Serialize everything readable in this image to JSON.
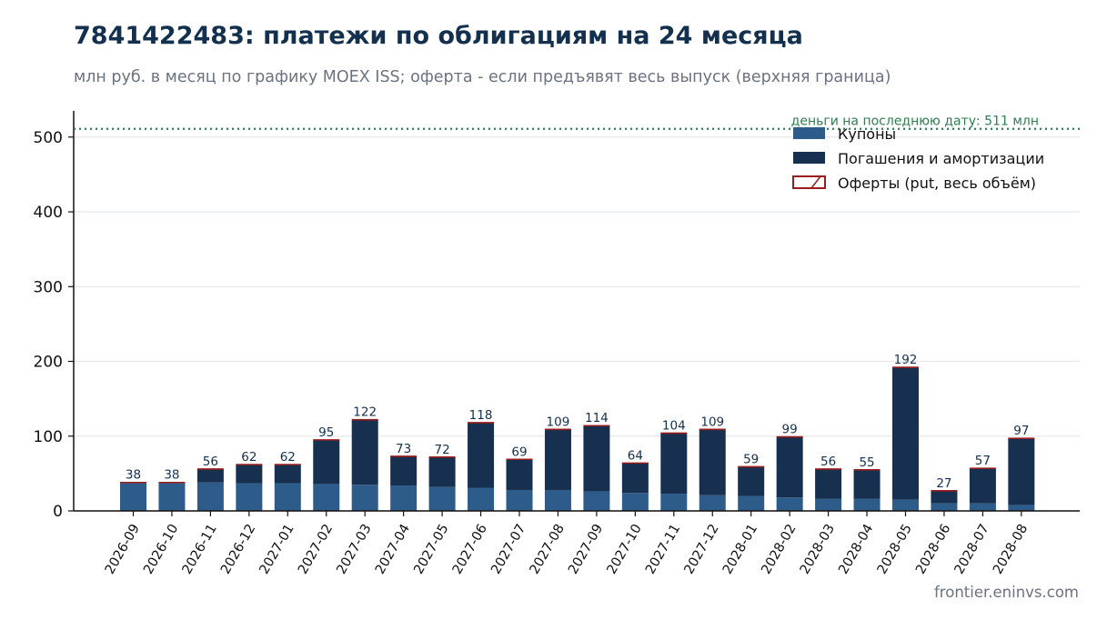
{
  "title": "7841422483: платежи по облигациям на 24 месяца",
  "subtitle": "млн руб. в месяц по графику MOEX ISS; оферта - если предъявят весь выпуск (верхняя граница)",
  "watermark": "frontier.eninvs.com",
  "colors": {
    "coupons": "#2d5b8a",
    "redemptions": "#17304f",
    "offers": "#9b1c1c",
    "refline": "#2e7d4f",
    "grid": "#e5e7eb",
    "axis": "#111111"
  },
  "chart_data": {
    "type": "bar",
    "stacked": true,
    "categories": [
      "2026-09",
      "2026-10",
      "2026-11",
      "2026-12",
      "2027-01",
      "2027-02",
      "2027-03",
      "2027-04",
      "2027-05",
      "2027-06",
      "2027-07",
      "2027-08",
      "2027-09",
      "2027-10",
      "2027-11",
      "2027-12",
      "2028-01",
      "2028-02",
      "2028-03",
      "2028-04",
      "2028-05",
      "2028-06",
      "2028-07",
      "2028-08"
    ],
    "series": [
      {
        "name": "Купоны",
        "color": "#2d5b8a",
        "values": [
          37,
          37,
          38,
          37,
          37,
          36,
          35,
          34,
          32,
          31,
          28,
          28,
          26,
          24,
          23,
          21,
          20,
          18,
          16,
          16,
          15,
          10,
          10,
          8
        ]
      },
      {
        "name": "Погашения и амортизации",
        "color": "#17304f",
        "values": [
          1,
          1,
          18,
          25,
          25,
          59,
          87,
          39,
          40,
          87,
          41,
          81,
          88,
          40,
          81,
          88,
          39,
          81,
          40,
          39,
          177,
          17,
          47,
          89
        ]
      },
      {
        "name": "Оферты (put, весь объём)",
        "color": "#9b1c1c",
        "pattern": "hatch",
        "values": [
          0,
          0,
          0,
          0,
          0,
          0,
          0,
          0,
          0,
          0,
          0,
          0,
          0,
          0,
          0,
          0,
          0,
          0,
          0,
          0,
          0,
          0,
          0,
          0
        ]
      }
    ],
    "totals": [
      38,
      38,
      56,
      62,
      62,
      95,
      122,
      73,
      72,
      118,
      69,
      109,
      114,
      64,
      104,
      109,
      59,
      99,
      56,
      55,
      192,
      27,
      57,
      97
    ],
    "ylim": [
      0,
      535
    ],
    "yticks": [
      0,
      100,
      200,
      300,
      400,
      500
    ],
    "grid": true,
    "legend_position": "top-right",
    "reference_line": {
      "value": 511,
      "label": "деньги на последнюю дату: 511 млн",
      "style": "dotted"
    }
  }
}
